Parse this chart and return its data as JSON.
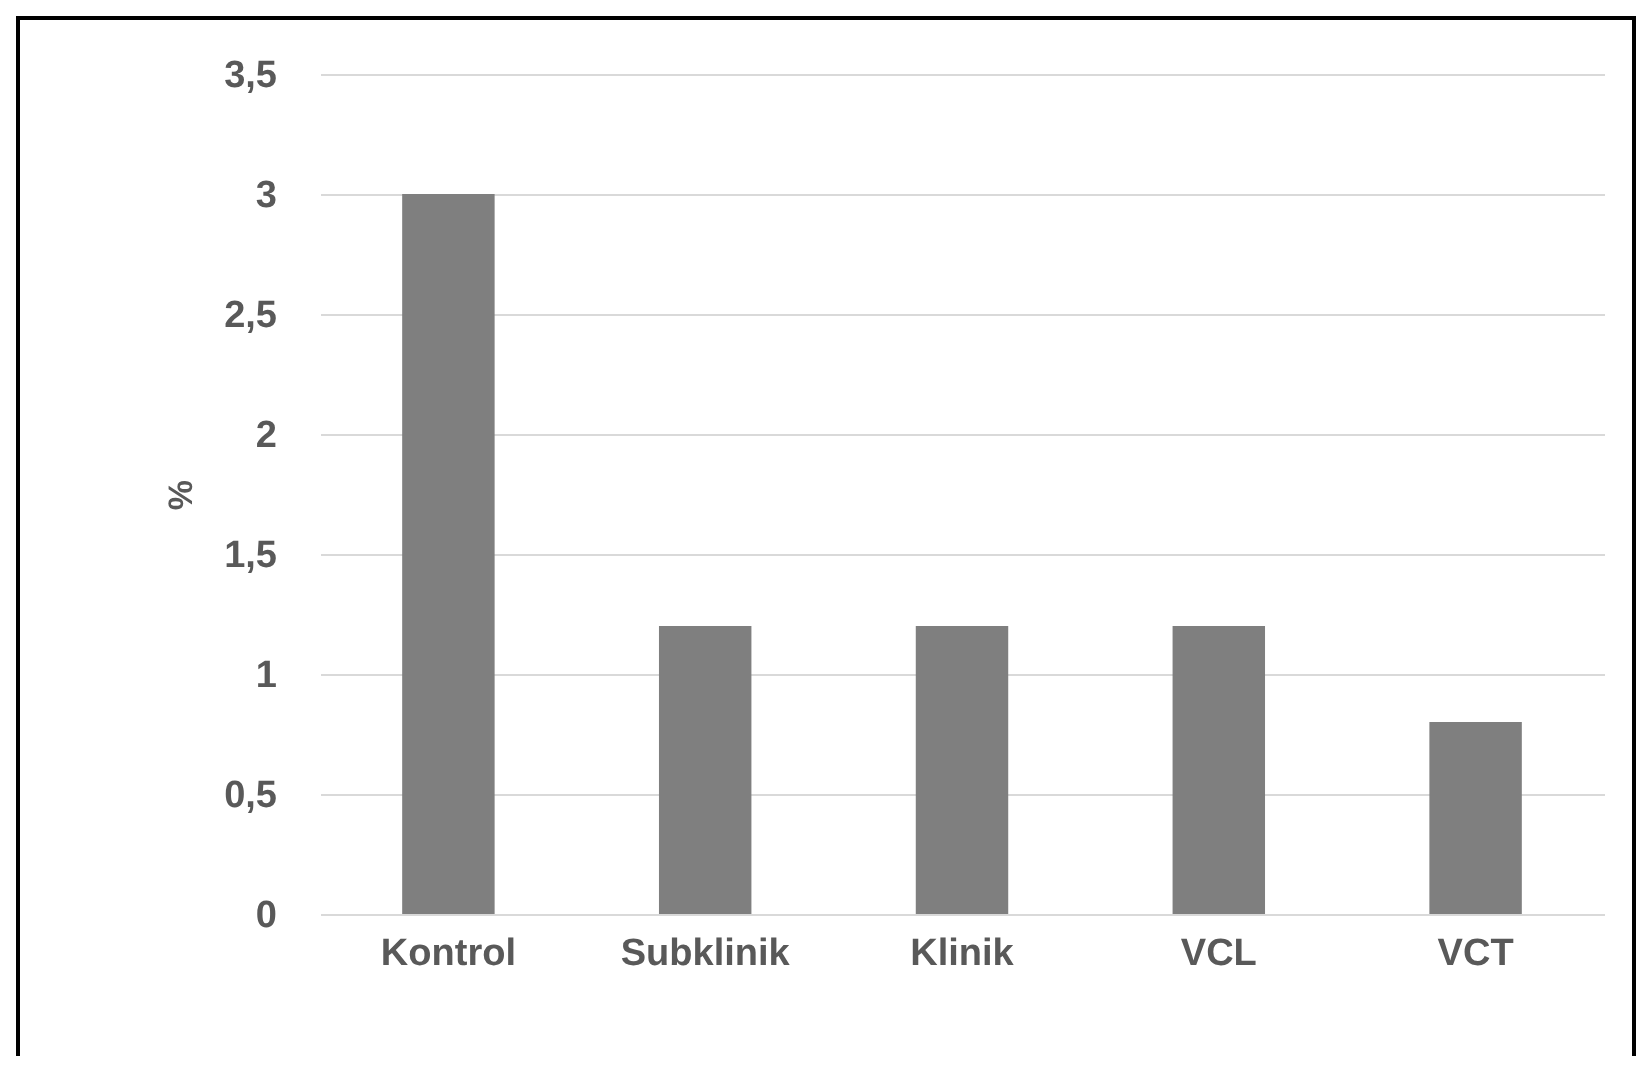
{
  "chart_data": {
    "type": "bar",
    "ylabel": "%",
    "categories": [
      "Kontrol",
      "Subklinik",
      "Klinik",
      "VCL",
      "VCT"
    ],
    "values": [
      3,
      1.2,
      1.2,
      1.2,
      0.8
    ],
    "color": "#7f7f7f",
    "ylim": [
      0,
      3.5
    ],
    "yticks": [
      0,
      {
        "value": 0.5,
        "label": "0,5"
      },
      1,
      {
        "value": 1.5,
        "label": "1,5"
      },
      2,
      {
        "value": 2.5,
        "label": "2,5"
      },
      3,
      {
        "value": 3.5,
        "label": "3,5"
      }
    ],
    "grid": "y"
  }
}
